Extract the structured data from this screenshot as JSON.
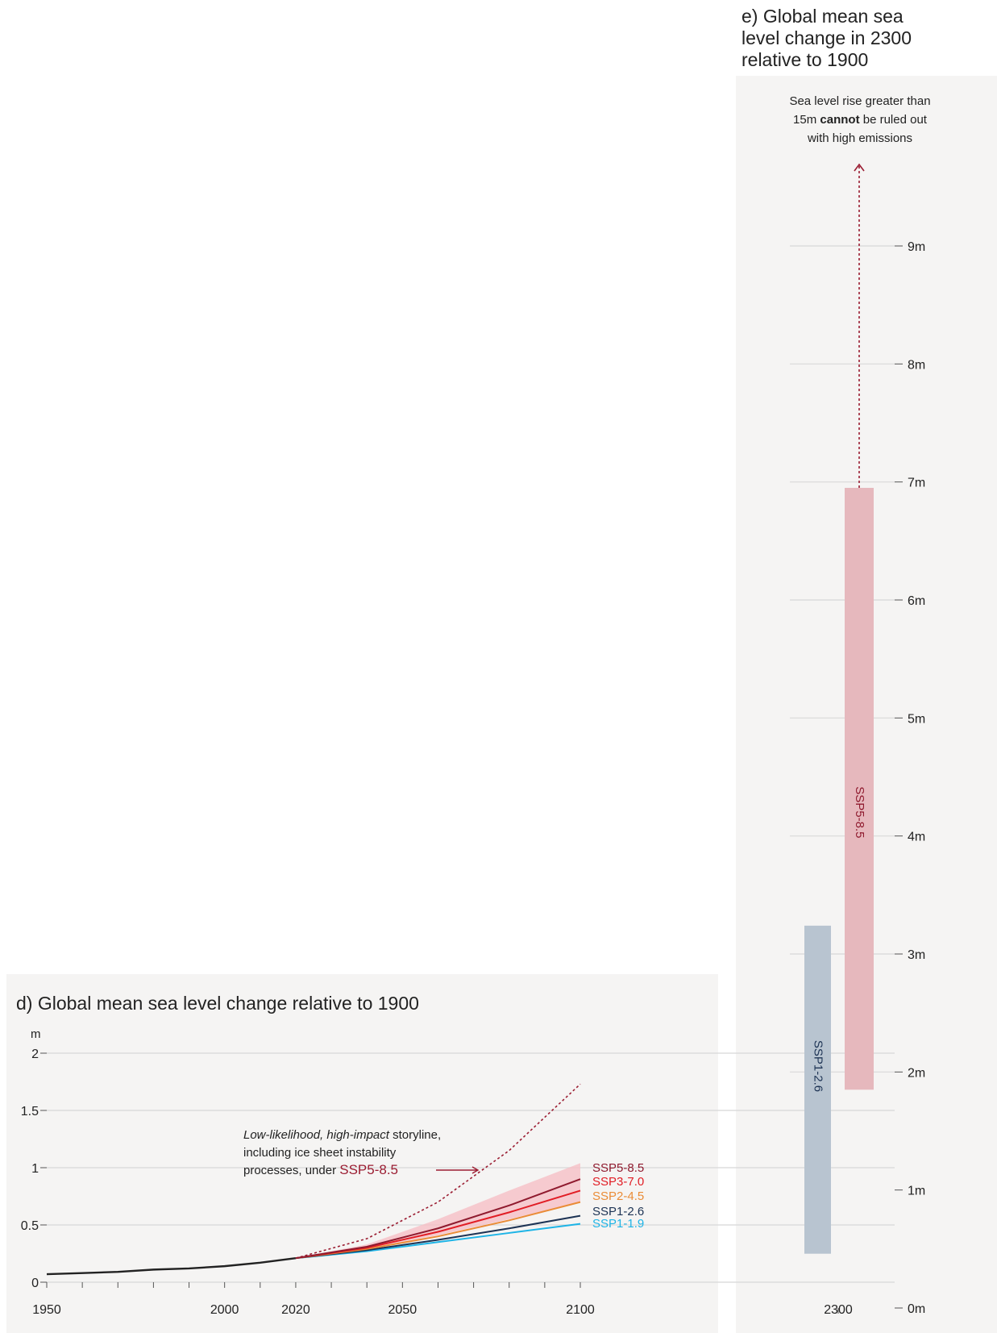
{
  "colors": {
    "panel_bg": "#f5f4f3",
    "grid": "#d8d8d8",
    "observed": "#222222",
    "ssp119": "#1eb4e6",
    "ssp126": "#1d3354",
    "ssp245": "#ea8c37",
    "ssp370": "#e11d25",
    "ssp585": "#8f1a2e",
    "ssp585_band": "#f6bfc6",
    "bar_ssp126": "#b8c4d0",
    "bar_ssp585": "#e6b8bd",
    "storyline": "#9b1d32"
  },
  "chart_data": [
    {
      "type": "line",
      "title": "d) Global mean sea level change relative to 1900",
      "ylabel": "m",
      "ylim": [
        0,
        2
      ],
      "xlim": [
        1950,
        2100
      ],
      "x_ticks": [
        "1950",
        "2000",
        "2020",
        "2050",
        "2100"
      ],
      "y_ticks": [
        "0",
        "0.5",
        "1",
        "1.5",
        "2"
      ],
      "grid": true,
      "annotation": {
        "italic1": "Low-likelihood, high-impact",
        "rest1": " storyline,",
        "line2": "including ice sheet instability",
        "line3": "processes, under ",
        "scenario": "SSP5-8.5"
      },
      "observed": {
        "x": [
          1950,
          1960,
          1970,
          1980,
          1990,
          2000,
          2010,
          2020
        ],
        "y": [
          0.07,
          0.08,
          0.09,
          0.11,
          0.12,
          0.14,
          0.17,
          0.21
        ]
      },
      "series": [
        {
          "name": "SSP5-8.5",
          "x": [
            2020,
            2040,
            2060,
            2080,
            2100
          ],
          "y": [
            0.21,
            0.31,
            0.47,
            0.67,
            0.9
          ],
          "band_low": [
            0.21,
            0.29,
            0.41,
            0.55,
            0.7
          ],
          "band_high": [
            0.21,
            0.33,
            0.55,
            0.8,
            1.04
          ]
        },
        {
          "name": "SSP3-7.0",
          "x": [
            2020,
            2040,
            2060,
            2080,
            2100
          ],
          "y": [
            0.21,
            0.3,
            0.44,
            0.61,
            0.8
          ]
        },
        {
          "name": "SSP2-4.5",
          "x": [
            2020,
            2040,
            2060,
            2080,
            2100
          ],
          "y": [
            0.21,
            0.29,
            0.4,
            0.54,
            0.7
          ]
        },
        {
          "name": "SSP1-2.6",
          "x": [
            2020,
            2040,
            2060,
            2080,
            2100
          ],
          "y": [
            0.21,
            0.28,
            0.37,
            0.47,
            0.58
          ]
        },
        {
          "name": "SSP1-1.9",
          "x": [
            2020,
            2040,
            2060,
            2080,
            2100
          ],
          "y": [
            0.21,
            0.27,
            0.35,
            0.43,
            0.51
          ]
        }
      ],
      "storyline": {
        "x": [
          2020,
          2040,
          2060,
          2080,
          2100
        ],
        "y": [
          0.21,
          0.38,
          0.7,
          1.15,
          1.73
        ]
      }
    },
    {
      "type": "bar",
      "title_lines": [
        "e) Global mean sea",
        "level change in 2300",
        "relative to 1900"
      ],
      "x_tick": "2300",
      "ylim": [
        0,
        9
      ],
      "y_ticks": [
        "0m",
        "1m",
        "2m",
        "3m",
        "4m",
        "5m",
        "6m",
        "7m",
        "8m",
        "9m"
      ],
      "grid": true,
      "ranges": [
        {
          "name": "SSP1-2.6",
          "low": 0.46,
          "high": 3.24
        },
        {
          "name": "SSP5-8.5",
          "low": 1.85,
          "high": 6.95
        }
      ],
      "annotation": {
        "line1": "Sea level rise greater than",
        "line2_pre": "15m ",
        "line2_bold": "cannot",
        "line2_post": " be ruled out",
        "line3": "with high emissions"
      }
    }
  ]
}
